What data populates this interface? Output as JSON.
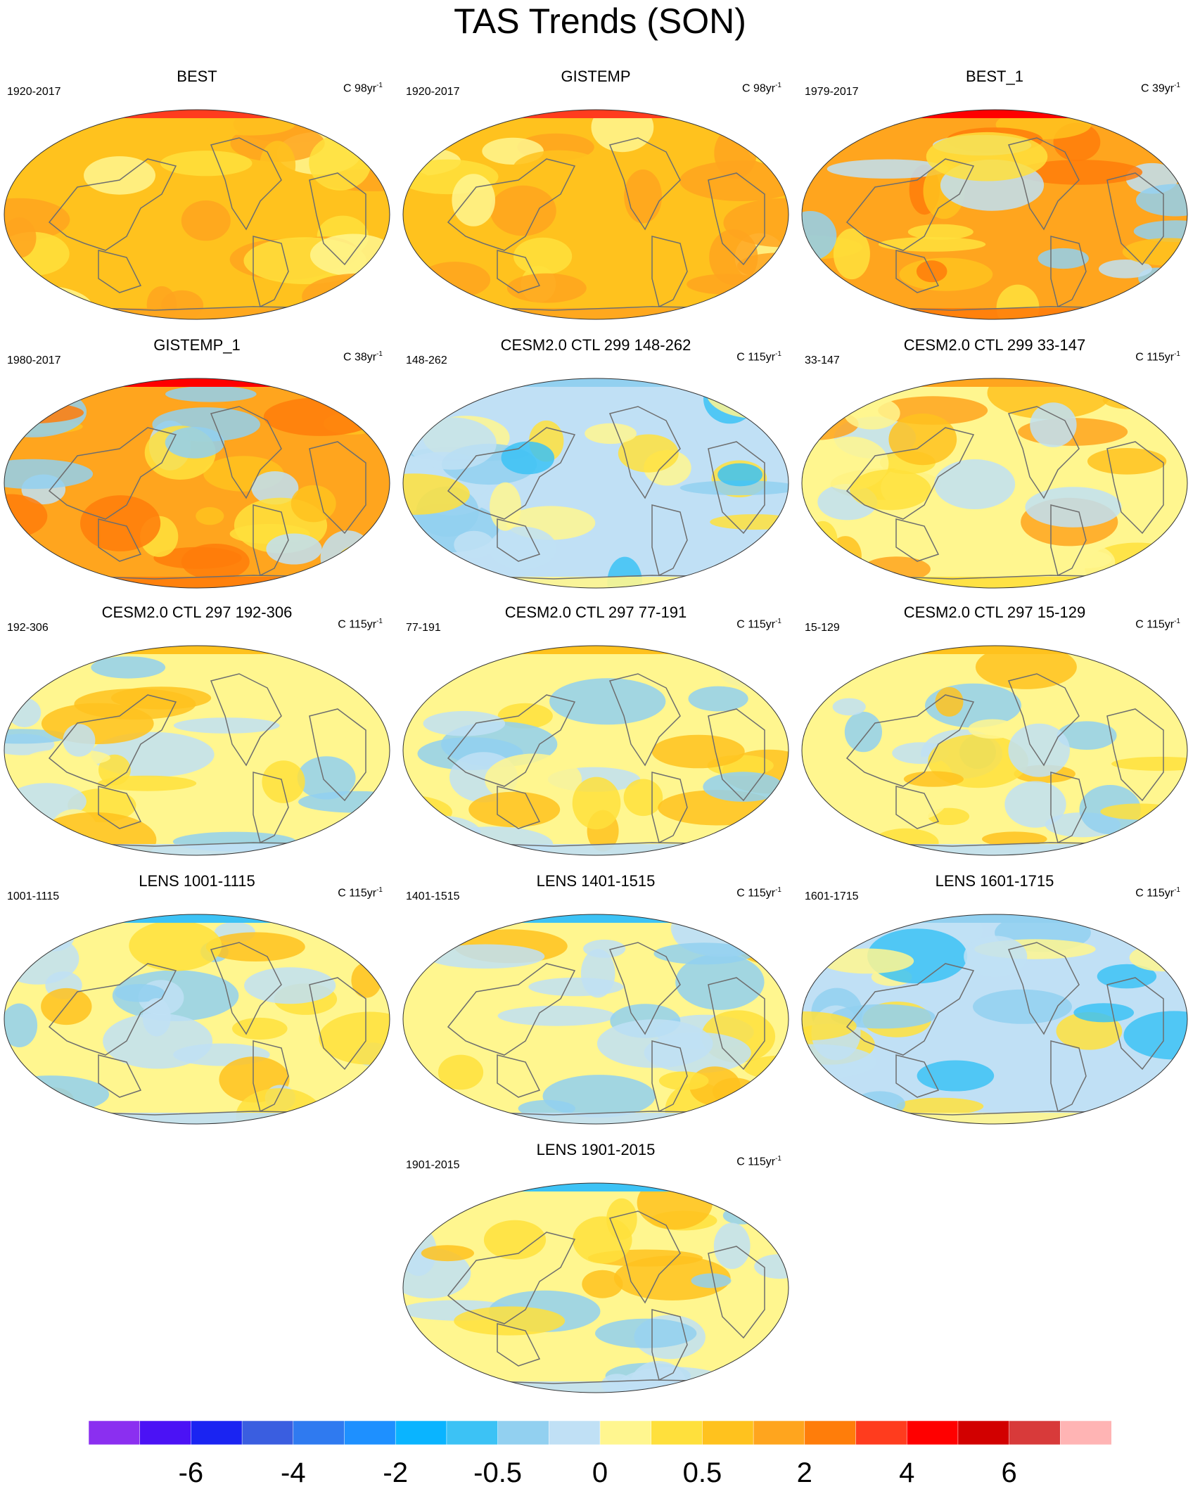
{
  "title": "TAS Trends (SON)",
  "panels": [
    {
      "title": "BEST",
      "range": "1920-2017",
      "unit": "C 98yr",
      "unit_exp": "-1",
      "pattern": "warm"
    },
    {
      "title": "GISTEMP",
      "range": "1920-2017",
      "unit": "C 98yr",
      "unit_exp": "-1",
      "pattern": "warm"
    },
    {
      "title": "BEST_1",
      "range": "1979-2017",
      "unit": "C 39yr",
      "unit_exp": "-1",
      "pattern": "hot"
    },
    {
      "title": "GISTEMP_1",
      "range": "1980-2017",
      "unit": "C 38yr",
      "unit_exp": "-1",
      "pattern": "hot"
    },
    {
      "title": "CESM2.0 CTL 299 148-262",
      "range": "148-262",
      "unit": "C 115yr",
      "unit_exp": "-1",
      "pattern": "cool"
    },
    {
      "title": "CESM2.0 CTL 299 33-147",
      "range": "33-147",
      "unit": "C 115yr",
      "unit_exp": "-1",
      "pattern": "mixwarm"
    },
    {
      "title": "CESM2.0 CTL 297 192-306",
      "range": "192-306",
      "unit": "C 115yr",
      "unit_exp": "-1",
      "pattern": "mix"
    },
    {
      "title": "CESM2.0 CTL 297 77-191",
      "range": "77-191",
      "unit": "C 115yr",
      "unit_exp": "-1",
      "pattern": "mix"
    },
    {
      "title": "CESM2.0 CTL 297 15-129",
      "range": "15-129",
      "unit": "C 115yr",
      "unit_exp": "-1",
      "pattern": "mix"
    },
    {
      "title": "LENS 1001-1115",
      "range": "1001-1115",
      "unit": "C 115yr",
      "unit_exp": "-1",
      "pattern": "mixcool"
    },
    {
      "title": "LENS 1401-1515",
      "range": "1401-1515",
      "unit": "C 115yr",
      "unit_exp": "-1",
      "pattern": "mixcool"
    },
    {
      "title": "LENS 1601-1715",
      "range": "1601-1715",
      "unit": "C 115yr",
      "unit_exp": "-1",
      "pattern": "cool"
    },
    {
      "title": "LENS 1901-2015",
      "range": "1901-2015",
      "unit": "C 115yr",
      "unit_exp": "-1",
      "pattern": "mixcool"
    }
  ],
  "colorbar": {
    "colors": [
      "#8b2ff0",
      "#4b12f5",
      "#1a24f2",
      "#3a5ee0",
      "#2f7af0",
      "#1e90ff",
      "#0ab4ff",
      "#3cc2f5",
      "#92d0f0",
      "#c0e0f5",
      "#fff68f",
      "#ffe03c",
      "#ffc21e",
      "#ffa51e",
      "#ff7d0a",
      "#ff3c1e",
      "#ff0000",
      "#d20000",
      "#d83a3a",
      "#ffb4b4"
    ],
    "labels": [
      "-6",
      "-4",
      "-2",
      "-0.5",
      "0",
      "0.5",
      "2",
      "4",
      "6"
    ]
  }
}
